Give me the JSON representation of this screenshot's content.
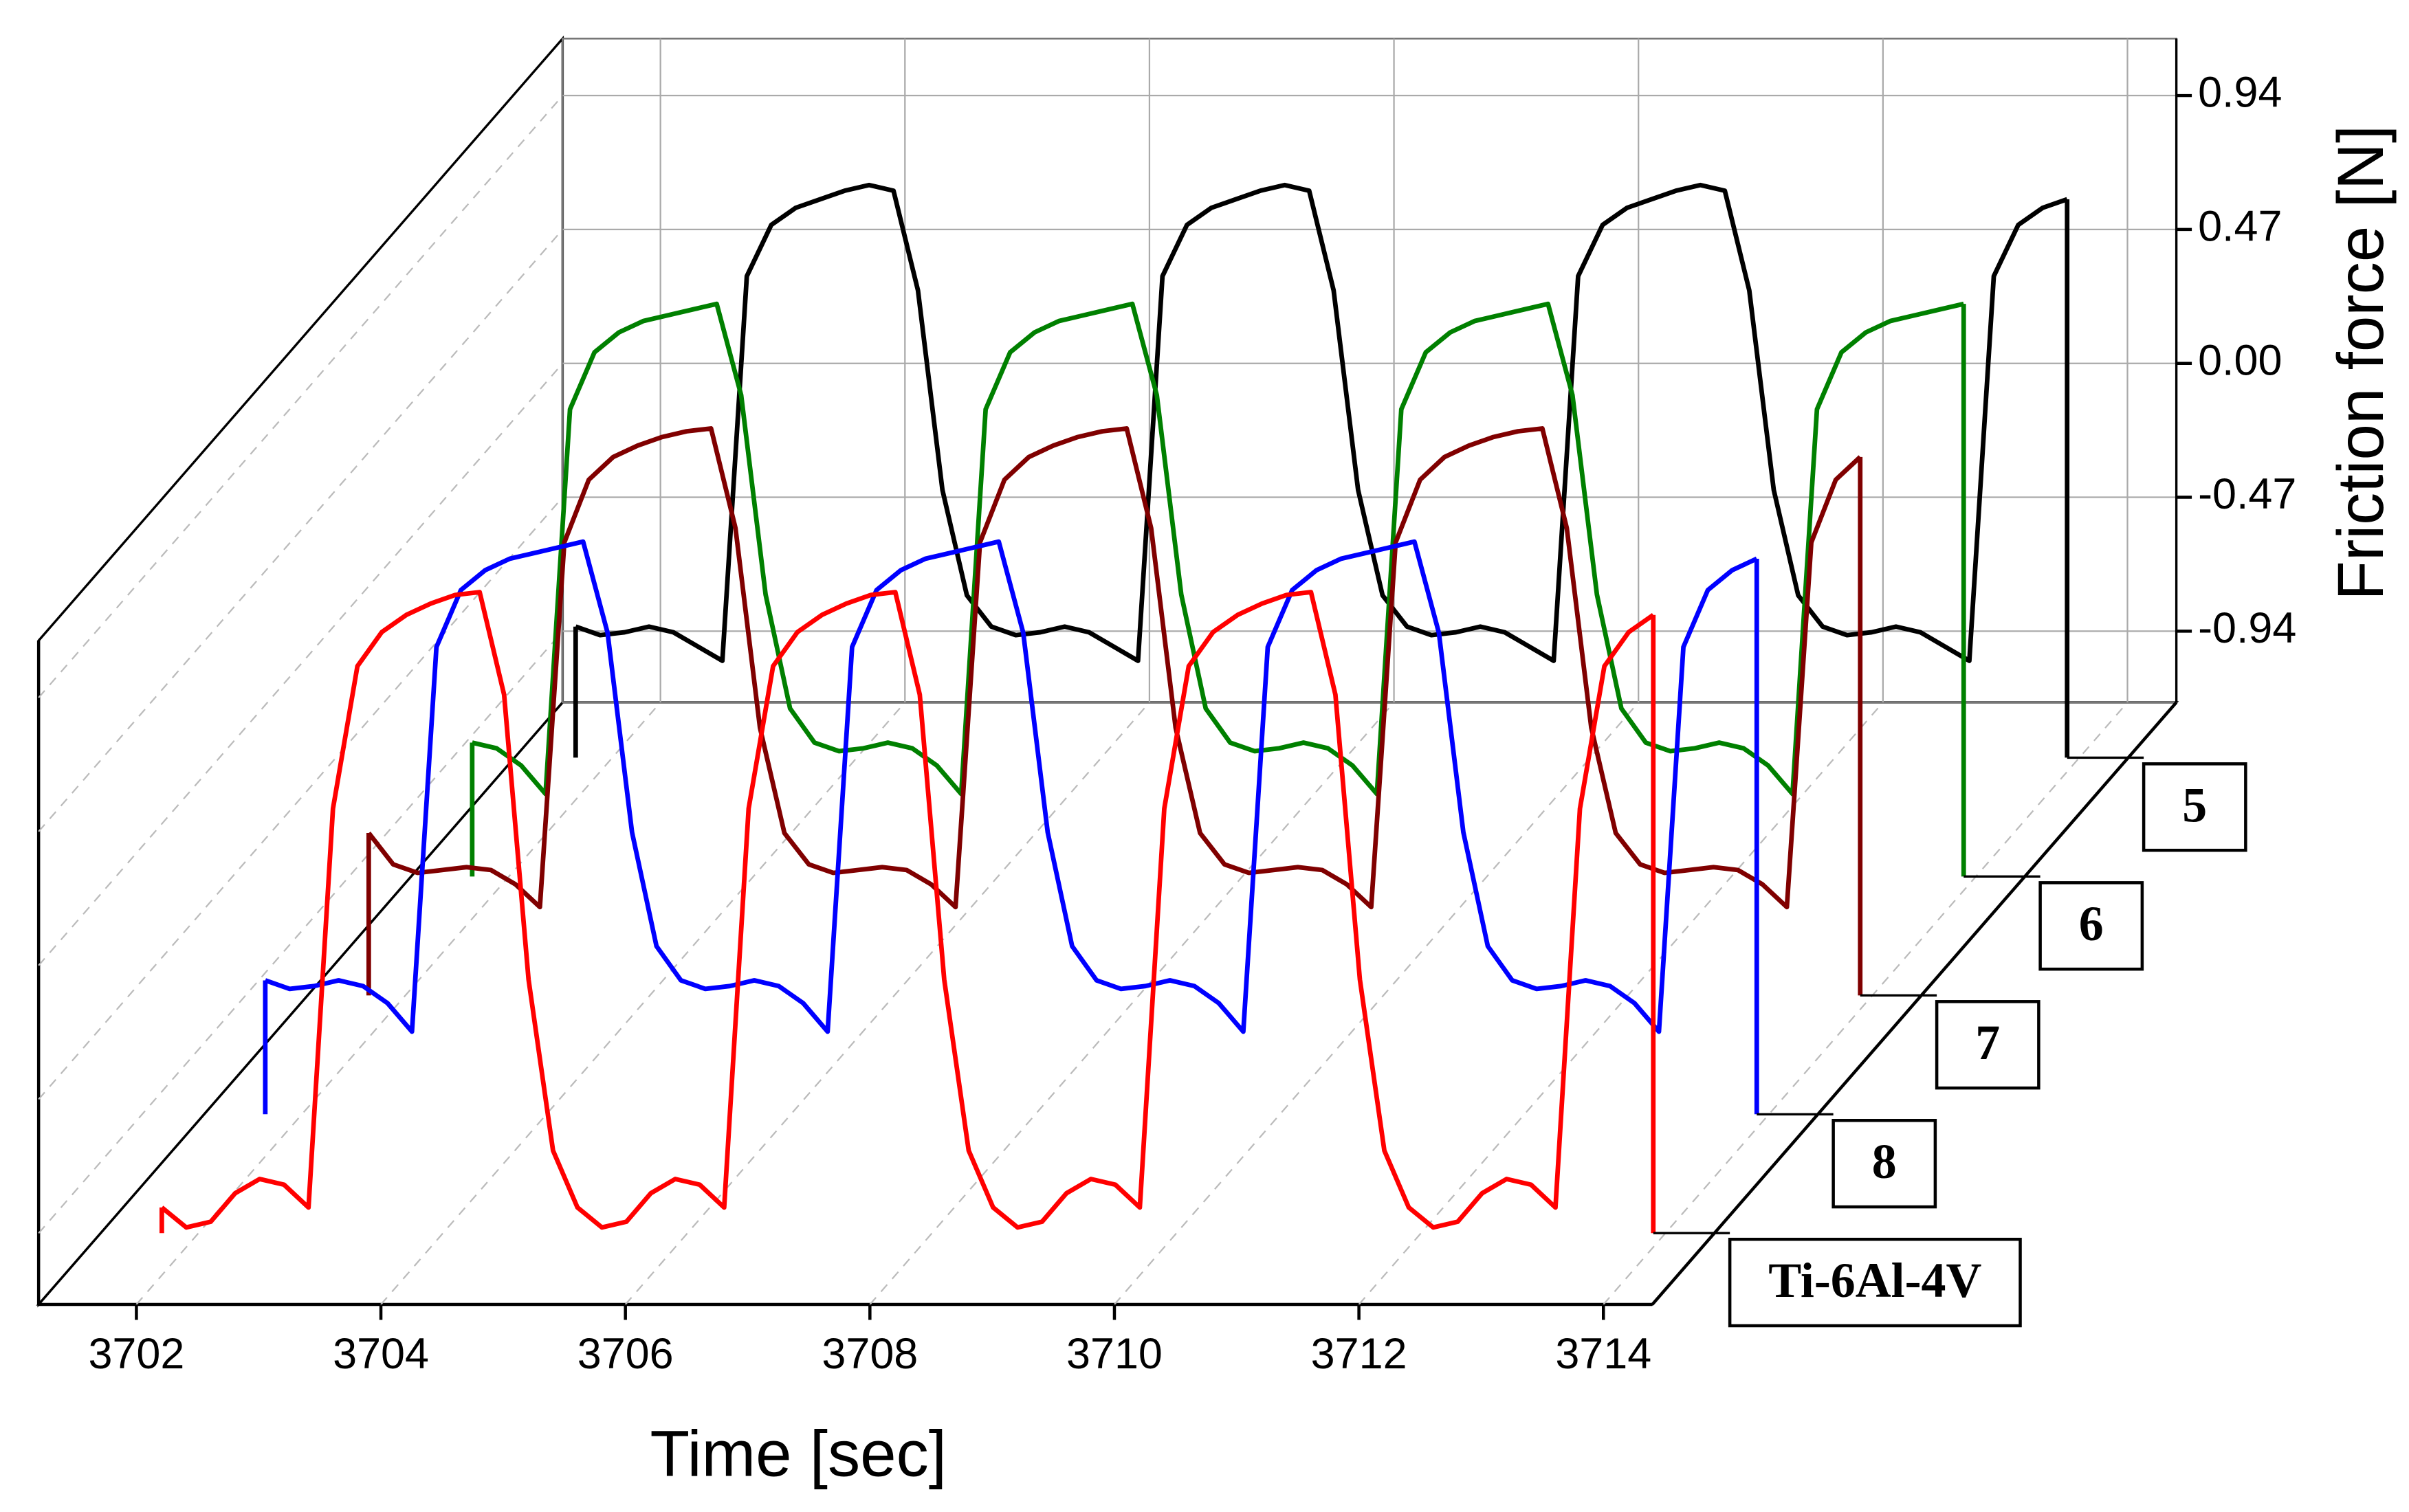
{
  "chart_data": {
    "type": "waterfall",
    "xlabel": "Time [sec]",
    "ylabel": "Friction force [N]",
    "xlim": [
      3701.2,
      3714.4
    ],
    "xticks": [
      3702,
      3704,
      3706,
      3708,
      3710,
      3712,
      3714
    ],
    "ylim": [
      -1.19,
      1.14
    ],
    "yticks": [
      0.94,
      0.47,
      {
        "value": 0,
        "label": "0.00"
      },
      -0.47,
      -0.94
    ],
    "grid": true,
    "x": [
      3701.7,
      3701.9,
      3702.1,
      3702.3,
      3702.5,
      3702.7,
      3702.9,
      3703.1,
      3703.3,
      3703.5,
      3703.7,
      3703.9,
      3704.1,
      3704.3,
      3704.5,
      3704.7,
      3704.9,
      3705.1,
      3705.3,
      3705.5,
      3705.7,
      3705.9,
      3706.1,
      3706.3,
      3706.5,
      3706.7,
      3706.9,
      3707.1,
      3707.3,
      3707.5,
      3707.7,
      3707.9,
      3708.1,
      3708.3,
      3708.5,
      3708.7,
      3708.9,
      3709.1,
      3709.3,
      3709.5,
      3709.7,
      3709.9,
      3710.1,
      3710.3,
      3710.5,
      3710.7,
      3710.9,
      3711.1,
      3711.3,
      3711.5,
      3711.7,
      3711.9,
      3712.1,
      3712.3,
      3712.5,
      3712.7,
      3712.9,
      3713.1,
      3713.3,
      3713.5,
      3713.7,
      3713.9
    ],
    "series": [
      {
        "name": "5",
        "color": "#000000",
        "values": [
          -0.73,
          -0.76,
          -0.75,
          -0.73,
          -0.75,
          -0.8,
          -0.85,
          0.5,
          0.68,
          0.74,
          0.77,
          0.8,
          0.82,
          0.8,
          0.45,
          -0.25,
          -0.62,
          -0.73,
          -0.76,
          -0.75,
          -0.73,
          -0.75,
          -0.8,
          -0.85,
          0.5,
          0.68,
          0.74,
          0.77,
          0.8,
          0.82,
          0.8,
          0.45,
          -0.25,
          -0.62,
          -0.73,
          -0.76,
          -0.75,
          -0.73,
          -0.75,
          -0.8,
          -0.85,
          0.5,
          0.68,
          0.74,
          0.77,
          0.8,
          0.82,
          0.8,
          0.45,
          -0.25,
          -0.62,
          -0.73,
          -0.76,
          -0.75,
          -0.73,
          -0.75,
          -0.8,
          -0.85,
          0.5,
          0.68,
          0.74,
          0.77
        ]
      },
      {
        "name": "6",
        "color": "#008000",
        "values": [
          -0.72,
          -0.74,
          -0.8,
          -0.9,
          0.45,
          0.65,
          0.72,
          0.76,
          0.78,
          0.8,
          0.82,
          0.5,
          -0.2,
          -0.6,
          -0.72,
          -0.75,
          -0.74,
          -0.72,
          -0.74,
          -0.8,
          -0.9,
          0.45,
          0.65,
          0.72,
          0.76,
          0.78,
          0.8,
          0.82,
          0.5,
          -0.2,
          -0.6,
          -0.72,
          -0.75,
          -0.74,
          -0.72,
          -0.74,
          -0.8,
          -0.9,
          0.45,
          0.65,
          0.72,
          0.76,
          0.78,
          0.8,
          0.82,
          0.5,
          -0.2,
          -0.6,
          -0.72,
          -0.75,
          -0.74,
          -0.72,
          -0.74,
          -0.8,
          -0.9,
          0.45,
          0.65,
          0.72,
          0.76,
          0.78,
          0.8,
          0.82
        ]
      },
      {
        "name": "7",
        "color": "#800000",
        "values": [
          -0.62,
          -0.73,
          -0.76,
          -0.75,
          -0.74,
          -0.75,
          -0.8,
          -0.88,
          0.4,
          0.62,
          0.7,
          0.74,
          0.77,
          0.79,
          0.8,
          0.45,
          -0.25,
          -0.62,
          -0.73,
          -0.76,
          -0.75,
          -0.74,
          -0.75,
          -0.8,
          -0.88,
          0.4,
          0.62,
          0.7,
          0.74,
          0.77,
          0.79,
          0.8,
          0.45,
          -0.25,
          -0.62,
          -0.73,
          -0.76,
          -0.75,
          -0.74,
          -0.75,
          -0.8,
          -0.88,
          0.4,
          0.62,
          0.7,
          0.74,
          0.77,
          0.79,
          0.8,
          0.45,
          -0.25,
          -0.62,
          -0.73,
          -0.76,
          -0.75,
          -0.74,
          -0.75,
          -0.8,
          -0.88,
          0.4,
          0.62,
          0.7
        ]
      },
      {
        "name": "8",
        "color": "#0000ff",
        "values": [
          -0.72,
          -0.75,
          -0.74,
          -0.72,
          -0.74,
          -0.8,
          -0.9,
          0.45,
          0.65,
          0.72,
          0.76,
          0.78,
          0.8,
          0.82,
          0.5,
          -0.2,
          -0.6,
          -0.72,
          -0.75,
          -0.74,
          -0.72,
          -0.74,
          -0.8,
          -0.9,
          0.45,
          0.65,
          0.72,
          0.76,
          0.78,
          0.8,
          0.82,
          0.5,
          -0.2,
          -0.6,
          -0.72,
          -0.75,
          -0.74,
          -0.72,
          -0.74,
          -0.8,
          -0.9,
          0.45,
          0.65,
          0.72,
          0.76,
          0.78,
          0.8,
          0.82,
          0.5,
          -0.2,
          -0.6,
          -0.72,
          -0.75,
          -0.74,
          -0.72,
          -0.74,
          -0.8,
          -0.9,
          0.45,
          0.65,
          0.72,
          0.76
        ]
      },
      {
        "name": "Ti-6Al-4V",
        "color": "#ff0000",
        "values": [
          -1.1,
          -1.17,
          -1.15,
          -1.05,
          -1.0,
          -1.02,
          -1.1,
          0.3,
          0.8,
          0.92,
          0.98,
          1.02,
          1.05,
          1.06,
          0.7,
          -0.3,
          -0.9,
          -1.1,
          -1.17,
          -1.15,
          -1.05,
          -1.0,
          -1.02,
          -1.1,
          0.3,
          0.8,
          0.92,
          0.98,
          1.02,
          1.05,
          1.06,
          0.7,
          -0.3,
          -0.9,
          -1.1,
          -1.17,
          -1.15,
          -1.05,
          -1.0,
          -1.02,
          -1.1,
          0.3,
          0.8,
          0.92,
          0.98,
          1.02,
          1.05,
          1.06,
          0.7,
          -0.3,
          -0.9,
          -1.1,
          -1.17,
          -1.15,
          -1.05,
          -1.0,
          -1.02,
          -1.1,
          0.3,
          0.8,
          0.92,
          0.98
        ]
      }
    ]
  }
}
